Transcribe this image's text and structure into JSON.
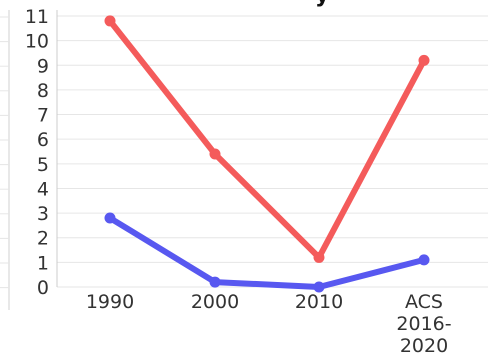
{
  "chart_data": {
    "type": "line",
    "title_fragment": "y",
    "categories": [
      "1990",
      "2000",
      "2010",
      "ACS 2016-2020"
    ],
    "category_label_lines": [
      [
        "1990"
      ],
      [
        "2000"
      ],
      [
        "2010"
      ],
      [
        "ACS",
        "2016-",
        "2020"
      ]
    ],
    "ylim": [
      0,
      11
    ],
    "yticks": [
      0,
      1,
      2,
      3,
      4,
      5,
      6,
      7,
      8,
      9,
      10,
      11
    ],
    "grid": true,
    "series": [
      {
        "color": "#f45b5b",
        "values": [
          10.8,
          5.4,
          1.2,
          9.2
        ]
      },
      {
        "color": "#5858f0",
        "values": [
          2.8,
          0.2,
          0.0,
          1.1
        ]
      }
    ]
  }
}
